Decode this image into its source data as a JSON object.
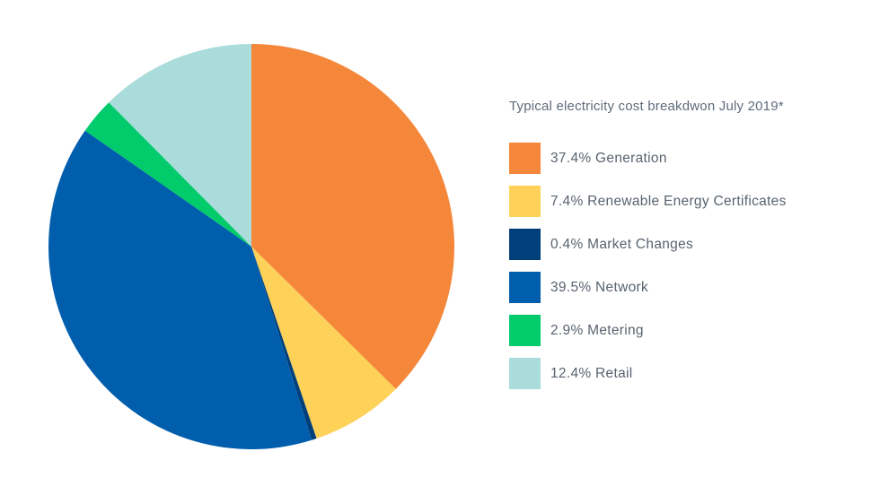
{
  "chart_data": {
    "type": "pie",
    "title": "Typical electricity cost breakdwon July 2019*",
    "legend_position": "right",
    "slices": [
      {
        "name": "Generation",
        "value": 37.4,
        "label": "37.4% Generation",
        "color": "#f5873b"
      },
      {
        "name": "Renewable Energy Certificates",
        "value": 7.4,
        "label": "7.4% Renewable Energy Certificates",
        "color": "#fed159"
      },
      {
        "name": "Market Changes",
        "value": 0.4,
        "label": "0.4% Market Changes",
        "color": "#003f7a"
      },
      {
        "name": "Network",
        "value": 39.5,
        "label": "39.5% Network",
        "color": "#015ead"
      },
      {
        "name": "Metering",
        "value": 2.9,
        "label": "2.9% Metering",
        "color": "#01cb6b"
      },
      {
        "name": "Retail",
        "value": 12.4,
        "label": "12.4% Retail",
        "color": "#a9dcda"
      }
    ]
  }
}
